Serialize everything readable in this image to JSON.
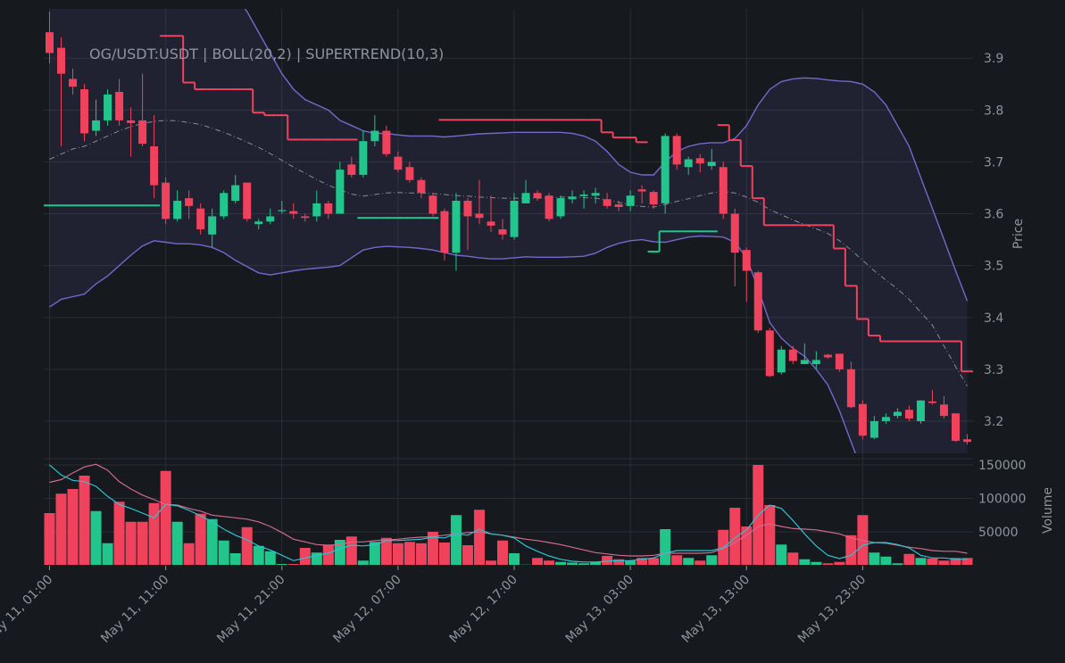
{
  "chart_data": [
    {
      "type": "candlestick",
      "title": "OG/USDT:USDT | BOLL(20,2) | SUPERTREND(10,3)",
      "ylabel": "Price",
      "categories": [
        "May 11, 01:00",
        null,
        null,
        null,
        null,
        null,
        null,
        null,
        null,
        null,
        "May 11, 11:00",
        null,
        null,
        null,
        null,
        null,
        null,
        null,
        null,
        null,
        "May 11, 21:00",
        null,
        null,
        null,
        null,
        null,
        null,
        null,
        null,
        null,
        "May 12, 07:00",
        null,
        null,
        null,
        null,
        null,
        null,
        null,
        null,
        null,
        "May 12, 17:00",
        null,
        null,
        null,
        null,
        null,
        null,
        null,
        null,
        null,
        "May 13, 03:00",
        null,
        null,
        null,
        null,
        null,
        null,
        null,
        null,
        null,
        "May 13, 13:00",
        null,
        null,
        null,
        null,
        null,
        null,
        null,
        null,
        null,
        "May 13, 23:00",
        null,
        null,
        null,
        null,
        null,
        null,
        null,
        null,
        null
      ],
      "open": [
        3.95,
        3.92,
        3.86,
        3.84,
        3.76,
        3.78,
        3.835,
        3.78,
        3.78,
        3.73,
        3.66,
        3.59,
        3.63,
        3.61,
        3.56,
        3.595,
        3.625,
        3.66,
        3.58,
        3.585,
        3.605,
        3.605,
        3.595,
        3.595,
        3.62,
        3.6,
        3.695,
        3.675,
        3.74,
        3.76,
        3.71,
        3.69,
        3.665,
        3.635,
        3.605,
        3.525,
        3.625,
        3.6,
        3.585,
        3.57,
        3.555,
        3.62,
        3.64,
        3.635,
        3.595,
        3.628,
        3.634,
        3.635,
        3.628,
        3.618,
        3.615,
        3.647,
        3.642,
        3.62,
        3.75,
        3.69,
        3.707,
        3.692,
        3.69,
        3.6,
        3.53,
        3.487,
        3.375,
        3.294,
        3.338,
        3.31,
        3.31,
        3.328,
        3.33,
        3.3,
        3.233,
        3.168,
        3.2,
        3.21,
        3.222,
        3.2,
        3.238,
        3.232,
        3.215,
        3.165
      ],
      "high": [
        3.99,
        3.94,
        3.88,
        3.85,
        3.82,
        3.84,
        3.86,
        3.805,
        3.87,
        3.79,
        3.67,
        3.645,
        3.645,
        3.62,
        3.61,
        3.645,
        3.675,
        3.66,
        3.59,
        3.61,
        3.625,
        3.62,
        3.6,
        3.645,
        3.625,
        3.7,
        3.71,
        3.76,
        3.79,
        3.77,
        3.72,
        3.7,
        3.67,
        3.64,
        3.61,
        3.64,
        3.63,
        3.665,
        3.635,
        3.59,
        3.64,
        3.665,
        3.645,
        3.64,
        3.635,
        3.645,
        3.645,
        3.65,
        3.64,
        3.625,
        3.645,
        3.655,
        3.645,
        3.755,
        3.755,
        3.71,
        3.715,
        3.725,
        3.7,
        3.61,
        3.535,
        3.49,
        3.38,
        3.345,
        3.345,
        3.35,
        3.335,
        3.33,
        3.33,
        3.315,
        3.24,
        3.21,
        3.215,
        3.225,
        3.23,
        3.24,
        3.26,
        3.248,
        3.215,
        3.175
      ],
      "low": [
        3.89,
        3.73,
        3.83,
        3.74,
        3.75,
        3.77,
        3.77,
        3.71,
        3.73,
        3.63,
        3.58,
        3.585,
        3.59,
        3.56,
        3.535,
        3.59,
        3.62,
        3.585,
        3.57,
        3.58,
        3.6,
        3.59,
        3.585,
        3.585,
        3.59,
        3.6,
        3.67,
        3.67,
        3.73,
        3.71,
        3.68,
        3.66,
        3.63,
        3.595,
        3.51,
        3.49,
        3.53,
        3.58,
        3.565,
        3.55,
        3.55,
        3.62,
        3.625,
        3.585,
        3.59,
        3.62,
        3.61,
        3.62,
        3.61,
        3.605,
        3.605,
        3.62,
        3.61,
        3.6,
        3.685,
        3.675,
        3.68,
        3.685,
        3.59,
        3.46,
        3.43,
        3.37,
        3.285,
        3.29,
        3.31,
        3.31,
        3.3,
        3.32,
        3.295,
        3.225,
        3.165,
        3.165,
        3.195,
        3.205,
        3.2,
        3.195,
        3.232,
        3.205,
        3.16,
        3.155
      ],
      "close": [
        3.91,
        3.87,
        3.845,
        3.755,
        3.78,
        3.83,
        3.78,
        3.775,
        3.735,
        3.655,
        3.59,
        3.625,
        3.615,
        3.57,
        3.595,
        3.64,
        3.655,
        3.59,
        3.585,
        3.595,
        3.607,
        3.6,
        3.592,
        3.62,
        3.6,
        3.685,
        3.675,
        3.74,
        3.76,
        3.715,
        3.685,
        3.665,
        3.64,
        3.6,
        3.525,
        3.625,
        3.595,
        3.592,
        3.577,
        3.56,
        3.625,
        3.64,
        3.63,
        3.59,
        3.63,
        3.633,
        3.637,
        3.64,
        3.615,
        3.613,
        3.635,
        3.643,
        3.618,
        3.75,
        3.695,
        3.705,
        3.697,
        3.7,
        3.6,
        3.525,
        3.49,
        3.375,
        3.287,
        3.338,
        3.316,
        3.318,
        3.318,
        3.323,
        3.3,
        3.227,
        3.172,
        3.2,
        3.208,
        3.218,
        3.205,
        3.24,
        3.235,
        3.21,
        3.162,
        3.16
      ],
      "up_color": "#22c68c",
      "down_color": "#f0425c",
      "ylim": [
        3.138,
        3.995
      ],
      "yticks": [
        3.2,
        3.3,
        3.4,
        3.5,
        3.6,
        3.7,
        3.8,
        3.9
      ],
      "grid": true,
      "bollinger": {
        "line_color": "#7468cc",
        "fill_color": "#6e64c8",
        "mid_color": "#878b92",
        "upper": [
          4.02,
          4.05,
          4.08,
          4.1,
          4.12,
          4.14,
          4.15,
          4.16,
          4.17,
          4.17,
          4.16,
          4.15,
          4.13,
          4.1,
          4.08,
          4.05,
          4.02,
          3.99,
          3.95,
          3.91,
          3.87,
          3.84,
          3.82,
          3.81,
          3.8,
          3.78,
          3.77,
          3.76,
          3.755,
          3.755,
          3.752,
          3.75,
          3.75,
          3.75,
          3.748,
          3.75,
          3.752,
          3.754,
          3.755,
          3.756,
          3.757,
          3.757,
          3.757,
          3.757,
          3.757,
          3.755,
          3.75,
          3.74,
          3.72,
          3.695,
          3.68,
          3.675,
          3.675,
          3.7,
          3.72,
          3.73,
          3.735,
          3.737,
          3.737,
          3.745,
          3.77,
          3.81,
          3.84,
          3.855,
          3.86,
          3.862,
          3.861,
          3.858,
          3.856,
          3.855,
          3.85,
          3.835,
          3.81,
          3.77,
          3.73,
          3.67,
          3.61,
          3.55,
          3.49,
          3.432
        ],
        "middle": [
          3.705,
          3.715,
          3.725,
          3.73,
          3.74,
          3.75,
          3.76,
          3.768,
          3.774,
          3.778,
          3.78,
          3.779,
          3.776,
          3.772,
          3.765,
          3.757,
          3.748,
          3.738,
          3.728,
          3.716,
          3.703,
          3.69,
          3.678,
          3.666,
          3.655,
          3.646,
          3.638,
          3.634,
          3.637,
          3.64,
          3.641,
          3.64,
          3.64,
          3.639,
          3.637,
          3.635,
          3.634,
          3.632,
          3.631,
          3.63,
          3.63,
          3.63,
          3.63,
          3.631,
          3.632,
          3.632,
          3.631,
          3.63,
          3.627,
          3.622,
          3.617,
          3.614,
          3.613,
          3.618,
          3.624,
          3.629,
          3.635,
          3.64,
          3.643,
          3.64,
          3.632,
          3.622,
          3.608,
          3.598,
          3.588,
          3.579,
          3.571,
          3.562,
          3.548,
          3.53,
          3.51,
          3.49,
          3.472,
          3.455,
          3.435,
          3.41,
          3.385,
          3.345,
          3.305,
          3.268
        ],
        "lower": [
          3.42,
          3.435,
          3.44,
          3.445,
          3.465,
          3.48,
          3.5,
          3.52,
          3.538,
          3.548,
          3.545,
          3.542,
          3.542,
          3.54,
          3.535,
          3.525,
          3.51,
          3.498,
          3.486,
          3.482,
          3.486,
          3.49,
          3.493,
          3.495,
          3.497,
          3.5,
          3.515,
          3.53,
          3.535,
          3.537,
          3.536,
          3.535,
          3.533,
          3.53,
          3.525,
          3.52,
          3.518,
          3.515,
          3.513,
          3.513,
          3.515,
          3.517,
          3.516,
          3.516,
          3.516,
          3.517,
          3.518,
          3.524,
          3.535,
          3.543,
          3.548,
          3.55,
          3.546,
          3.545,
          3.55,
          3.555,
          3.557,
          3.556,
          3.555,
          3.545,
          3.515,
          3.455,
          3.39,
          3.36,
          3.34,
          3.325,
          3.3,
          3.27,
          3.22,
          3.16,
          3.1,
          3.05,
          3.0,
          2.96,
          2.93,
          2.9,
          2.88,
          2.87,
          2.86,
          2.86
        ]
      },
      "supertrend": {
        "up_color": "#22c68c",
        "down_color": "#f0425c",
        "upper": [
          null,
          null,
          null,
          null,
          null,
          null,
          null,
          null,
          null,
          null,
          3.943,
          3.943,
          3.853,
          3.84,
          3.84,
          3.84,
          3.84,
          3.84,
          3.795,
          3.79,
          3.79,
          3.743,
          3.743,
          3.743,
          3.743,
          3.743,
          3.743,
          null,
          null,
          null,
          null,
          null,
          null,
          null,
          3.781,
          3.781,
          3.781,
          3.781,
          3.781,
          3.781,
          3.781,
          3.781,
          3.781,
          3.781,
          3.781,
          3.781,
          3.781,
          3.781,
          3.757,
          3.747,
          3.747,
          3.738,
          null,
          null,
          null,
          null,
          null,
          null,
          3.771,
          3.742,
          3.692,
          3.63,
          3.578,
          3.578,
          3.578,
          3.578,
          3.578,
          3.578,
          3.533,
          3.461,
          3.397,
          3.365,
          3.354,
          3.354,
          3.354,
          3.354,
          3.354,
          3.354,
          3.354,
          3.296
        ],
        "lower": [
          3.616,
          3.616,
          3.616,
          3.616,
          3.616,
          3.616,
          3.616,
          3.616,
          3.616,
          3.616,
          null,
          null,
          null,
          null,
          null,
          null,
          null,
          null,
          null,
          null,
          null,
          null,
          null,
          null,
          null,
          null,
          null,
          3.592,
          3.592,
          3.592,
          3.592,
          3.592,
          3.592,
          3.592,
          null,
          null,
          null,
          null,
          null,
          null,
          null,
          null,
          null,
          null,
          null,
          null,
          null,
          null,
          null,
          null,
          null,
          null,
          3.527,
          3.566,
          3.566,
          3.566,
          3.566,
          3.566,
          null,
          null,
          null,
          null,
          null,
          null,
          null,
          null,
          null,
          null,
          null,
          null,
          null,
          null,
          null,
          null,
          null,
          null,
          null,
          null,
          null,
          null
        ]
      }
    },
    {
      "type": "volume",
      "ylabel": "Volume",
      "values": [
        78000,
        107000,
        114000,
        134000,
        81000,
        33000,
        95000,
        65000,
        65000,
        93000,
        141000,
        65000,
        33000,
        77000,
        69000,
        37000,
        18000,
        57000,
        29000,
        21000,
        2000,
        2000,
        26000,
        19000,
        30000,
        38000,
        43000,
        7000,
        35000,
        41000,
        33000,
        35000,
        33000,
        50000,
        34000,
        75000,
        30000,
        83000,
        7000,
        37000,
        18000,
        1000,
        11000,
        7000,
        5000,
        4000,
        3000,
        5000,
        14000,
        9000,
        7000,
        11000,
        11000,
        54000,
        15000,
        11000,
        7000,
        15000,
        53000,
        86000,
        58000,
        150000,
        90000,
        31000,
        19000,
        9000,
        5000,
        3000,
        5000,
        45000,
        75000,
        19000,
        13000,
        3000,
        17000,
        11000,
        10000,
        7000,
        11000,
        11000
      ],
      "ma_slow": [
        124000,
        128000,
        138000,
        147000,
        151000,
        142000,
        125000,
        114000,
        105000,
        98000,
        91000,
        90000,
        85000,
        81000,
        75000,
        73000,
        71000,
        69000,
        65000,
        58000,
        49000,
        39000,
        35000,
        31000,
        30000,
        31000,
        35000,
        35000,
        37000,
        38000,
        39000,
        41000,
        42000,
        43000,
        45000,
        47000,
        49000,
        50000,
        47000,
        45000,
        42000,
        39000,
        37000,
        34000,
        31000,
        27000,
        23000,
        19000,
        17000,
        15000,
        14000,
        14000,
        15000,
        18000,
        18000,
        18000,
        18000,
        19000,
        25000,
        34000,
        45000,
        58000,
        62000,
        58000,
        55000,
        54000,
        53000,
        50000,
        47000,
        41000,
        37000,
        34000,
        33000,
        30000,
        27000,
        25000,
        22000,
        21000,
        21000,
        18000
      ],
      "ma_fast": [
        150000,
        135000,
        127000,
        125000,
        118000,
        103000,
        91000,
        85000,
        78000,
        71000,
        91000,
        89000,
        82000,
        74000,
        65000,
        54000,
        45000,
        38000,
        29000,
        23000,
        15000,
        7000,
        11000,
        15000,
        18000,
        25000,
        30000,
        29000,
        31000,
        37000,
        37000,
        38000,
        39000,
        42000,
        41000,
        47000,
        45000,
        54000,
        47000,
        45000,
        41000,
        29000,
        21000,
        14000,
        9000,
        6000,
        5000,
        5000,
        6000,
        7000,
        7000,
        9000,
        11000,
        18000,
        22000,
        22000,
        22000,
        22000,
        26000,
        41000,
        53000,
        75000,
        90000,
        85000,
        67000,
        47000,
        29000,
        15000,
        10000,
        15000,
        30000,
        34000,
        34000,
        31000,
        26000,
        15000,
        11000,
        11000,
        9000,
        9000
      ],
      "ma_slow_color": "#d06a8e",
      "ma_fast_color": "#2cc3d2",
      "ylim": [
        0,
        150000
      ],
      "yticks": [
        50000,
        100000,
        150000
      ],
      "grid": true
    }
  ]
}
